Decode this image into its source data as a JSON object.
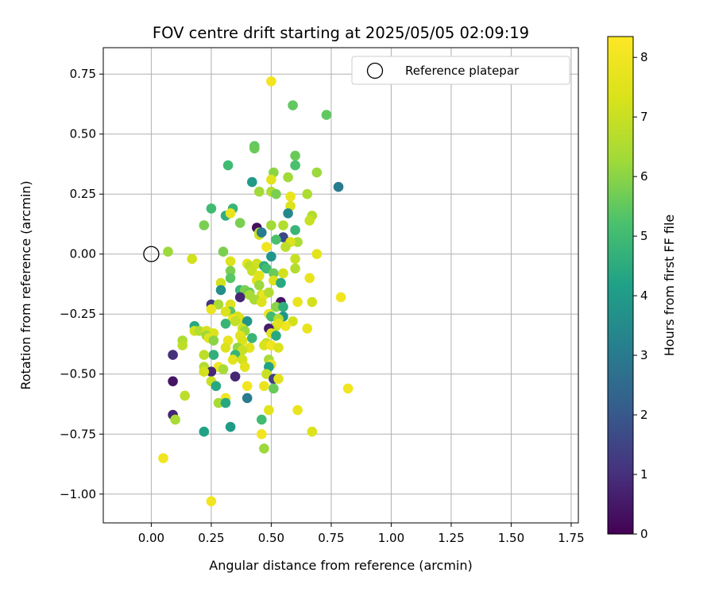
{
  "chart_data": {
    "type": "scatter",
    "title": "FOV centre drift starting at 2025/05/05 02:09:19",
    "xlabel": "Angular distance from reference (arcmin)",
    "ylabel": "Rotation from reference (arcmin)",
    "xlim": [
      -0.2,
      1.78
    ],
    "ylim": [
      -1.12,
      0.86
    ],
    "xticks": [
      0.0,
      0.25,
      0.5,
      0.75,
      1.0,
      1.25,
      1.5,
      1.75
    ],
    "xtick_labels": [
      "0.00",
      "0.25",
      "0.50",
      "0.75",
      "1.00",
      "1.25",
      "1.50",
      "1.75"
    ],
    "yticks": [
      0.75,
      0.5,
      0.25,
      0.0,
      -0.25,
      -0.5,
      -0.75,
      -1.0
    ],
    "ytick_labels": [
      "0.75",
      "0.50",
      "0.25",
      "0.00",
      "−0.25",
      "−0.50",
      "−0.75",
      "−1.00"
    ],
    "grid": true,
    "legend": {
      "label": "Reference platepar",
      "position": "top-right"
    },
    "reference_point": {
      "x": 0.0,
      "y": 0.0
    },
    "colorbar": {
      "label": "Hours from first FF file",
      "min": 0,
      "max": 8.35,
      "ticks": [
        0,
        1,
        2,
        3,
        4,
        5,
        6,
        7,
        8
      ],
      "tick_labels": [
        "0",
        "1",
        "2",
        "3",
        "4",
        "5",
        "6",
        "7",
        "8"
      ],
      "colormap": "viridis"
    },
    "series": [
      {
        "values": [
          [
            0.5,
            0.72,
            8.0
          ],
          [
            0.59,
            0.62,
            5.5
          ],
          [
            0.73,
            0.58,
            5.5
          ],
          [
            0.43,
            0.45,
            5.5
          ],
          [
            0.43,
            0.44,
            5.6
          ],
          [
            0.6,
            0.41,
            5.6
          ],
          [
            0.32,
            0.37,
            5.0
          ],
          [
            0.6,
            0.37,
            5.2
          ],
          [
            0.69,
            0.34,
            6.2
          ],
          [
            0.51,
            0.34,
            6.0
          ],
          [
            0.57,
            0.32,
            6.3
          ],
          [
            0.5,
            0.31,
            7.6
          ],
          [
            0.42,
            0.3,
            4.0
          ],
          [
            0.78,
            0.28,
            3.0
          ],
          [
            0.5,
            0.26,
            6.5
          ],
          [
            0.52,
            0.25,
            5.8
          ],
          [
            0.45,
            0.26,
            6.3
          ],
          [
            0.65,
            0.25,
            6.5
          ],
          [
            0.58,
            0.24,
            7.8
          ],
          [
            0.34,
            0.19,
            4.8
          ],
          [
            0.25,
            0.19,
            5.0
          ],
          [
            0.31,
            0.16,
            4.6
          ],
          [
            0.58,
            0.2,
            7.4
          ],
          [
            0.33,
            0.17,
            7.8
          ],
          [
            0.22,
            0.12,
            5.8
          ],
          [
            0.57,
            0.17,
            3.4
          ],
          [
            0.37,
            0.13,
            5.8
          ],
          [
            0.67,
            0.16,
            6.6
          ],
          [
            0.66,
            0.14,
            7.0
          ],
          [
            0.5,
            0.12,
            6.3
          ],
          [
            0.55,
            0.12,
            6.6
          ],
          [
            0.44,
            0.11,
            0.3
          ],
          [
            0.45,
            0.09,
            6.4
          ],
          [
            0.45,
            0.08,
            7.2
          ],
          [
            0.46,
            0.09,
            3.0
          ],
          [
            0.6,
            0.1,
            4.8
          ],
          [
            0.55,
            0.07,
            1.6
          ],
          [
            0.52,
            0.06,
            5.2
          ],
          [
            0.61,
            0.05,
            6.5
          ],
          [
            0.58,
            0.05,
            7.4
          ],
          [
            0.56,
            0.03,
            6.8
          ],
          [
            0.48,
            0.03,
            8.0
          ],
          [
            0.07,
            0.01,
            6.2
          ],
          [
            0.3,
            0.01,
            5.8
          ],
          [
            0.69,
            0.0,
            7.6
          ],
          [
            0.17,
            -0.02,
            7.2
          ],
          [
            0.5,
            -0.01,
            3.8
          ],
          [
            0.6,
            -0.02,
            7.0
          ],
          [
            0.33,
            -0.03,
            7.4
          ],
          [
            0.4,
            -0.04,
            7.6
          ],
          [
            0.41,
            -0.05,
            6.8
          ],
          [
            0.44,
            -0.04,
            7.1
          ],
          [
            0.47,
            -0.05,
            4.6
          ],
          [
            0.48,
            -0.06,
            5.0
          ],
          [
            0.6,
            -0.06,
            6.6
          ],
          [
            0.33,
            -0.07,
            5.8
          ],
          [
            0.42,
            -0.07,
            7.0
          ],
          [
            0.51,
            -0.08,
            5.6
          ],
          [
            0.55,
            -0.08,
            7.2
          ],
          [
            0.45,
            -0.09,
            7.5
          ],
          [
            0.33,
            -0.1,
            5.4
          ],
          [
            0.66,
            -0.1,
            7.8
          ],
          [
            0.51,
            -0.11,
            7.4
          ],
          [
            0.44,
            -0.11,
            7.5
          ],
          [
            0.54,
            -0.12,
            4.4
          ],
          [
            0.29,
            -0.12,
            7.2
          ],
          [
            0.45,
            -0.13,
            6.2
          ],
          [
            0.37,
            -0.15,
            4.8
          ],
          [
            0.39,
            -0.15,
            5.8
          ],
          [
            0.41,
            -0.16,
            5.6
          ],
          [
            0.29,
            -0.15,
            3.6
          ],
          [
            0.41,
            -0.17,
            6.4
          ],
          [
            0.46,
            -0.17,
            7.0
          ],
          [
            0.47,
            -0.17,
            7.8
          ],
          [
            0.49,
            -0.16,
            6.6
          ],
          [
            0.37,
            -0.18,
            0.8
          ],
          [
            0.79,
            -0.18,
            8.0
          ],
          [
            0.61,
            -0.2,
            7.8
          ],
          [
            0.67,
            -0.2,
            7.2
          ],
          [
            0.54,
            -0.2,
            0.4
          ],
          [
            0.43,
            -0.19,
            6.4
          ],
          [
            0.46,
            -0.2,
            7.4
          ],
          [
            0.33,
            -0.21,
            7.4
          ],
          [
            0.25,
            -0.21,
            1.2
          ],
          [
            0.28,
            -0.21,
            6.4
          ],
          [
            0.52,
            -0.22,
            6.0
          ],
          [
            0.55,
            -0.22,
            4.6
          ],
          [
            0.25,
            -0.23,
            7.8
          ],
          [
            0.33,
            -0.24,
            5.4
          ],
          [
            0.31,
            -0.24,
            7.4
          ],
          [
            0.49,
            -0.25,
            7.8
          ],
          [
            0.5,
            -0.26,
            5.0
          ],
          [
            0.36,
            -0.26,
            7.2
          ],
          [
            0.55,
            -0.26,
            3.8
          ],
          [
            0.53,
            -0.27,
            6.6
          ],
          [
            0.34,
            -0.27,
            7.8
          ],
          [
            0.37,
            -0.27,
            7.4
          ],
          [
            0.35,
            -0.28,
            6.9
          ],
          [
            0.4,
            -0.28,
            3.8
          ],
          [
            0.59,
            -0.28,
            7.2
          ],
          [
            0.31,
            -0.29,
            4.8
          ],
          [
            0.52,
            -0.3,
            7.0
          ],
          [
            0.56,
            -0.3,
            8.0
          ],
          [
            0.53,
            -0.29,
            7.6
          ],
          [
            0.18,
            -0.3,
            4.4
          ],
          [
            0.65,
            -0.31,
            7.8
          ],
          [
            0.49,
            -0.31,
            0.6
          ],
          [
            0.38,
            -0.31,
            7.1
          ],
          [
            0.39,
            -0.32,
            6.2
          ],
          [
            0.18,
            -0.32,
            7.2
          ],
          [
            0.2,
            -0.32,
            6.6
          ],
          [
            0.23,
            -0.32,
            7.2
          ],
          [
            0.26,
            -0.33,
            7.4
          ],
          [
            0.5,
            -0.33,
            7.6
          ],
          [
            0.52,
            -0.34,
            4.4
          ],
          [
            0.37,
            -0.34,
            7.6
          ],
          [
            0.23,
            -0.34,
            6.2
          ],
          [
            0.24,
            -0.35,
            7.5
          ],
          [
            0.42,
            -0.35,
            4.8
          ],
          [
            0.13,
            -0.36,
            6.5
          ],
          [
            0.38,
            -0.36,
            7.3
          ],
          [
            0.32,
            -0.36,
            7.8
          ],
          [
            0.26,
            -0.36,
            6.0
          ],
          [
            0.48,
            -0.37,
            6.9
          ],
          [
            0.47,
            -0.38,
            7.3
          ],
          [
            0.13,
            -0.38,
            6.8
          ],
          [
            0.5,
            -0.38,
            8.0
          ],
          [
            0.36,
            -0.39,
            6.1
          ],
          [
            0.41,
            -0.39,
            7.6
          ],
          [
            0.53,
            -0.39,
            7.4
          ],
          [
            0.31,
            -0.39,
            7.4
          ],
          [
            0.38,
            -0.4,
            7.0
          ],
          [
            0.09,
            -0.42,
            1.0
          ],
          [
            0.35,
            -0.42,
            4.8
          ],
          [
            0.26,
            -0.42,
            4.6
          ],
          [
            0.22,
            -0.42,
            6.8
          ],
          [
            0.34,
            -0.44,
            7.6
          ],
          [
            0.38,
            -0.44,
            7.2
          ],
          [
            0.49,
            -0.44,
            6.4
          ],
          [
            0.5,
            -0.46,
            7.9
          ],
          [
            0.49,
            -0.47,
            4.2
          ],
          [
            0.22,
            -0.47,
            6.6
          ],
          [
            0.28,
            -0.47,
            8.0
          ],
          [
            0.39,
            -0.47,
            7.6
          ],
          [
            0.3,
            -0.48,
            6.4
          ],
          [
            0.25,
            -0.49,
            0.8
          ],
          [
            0.22,
            -0.49,
            7.2
          ],
          [
            0.35,
            -0.51,
            0.8
          ],
          [
            0.48,
            -0.5,
            7.0
          ],
          [
            0.51,
            -0.52,
            1.4
          ],
          [
            0.53,
            -0.52,
            7.6
          ],
          [
            0.09,
            -0.53,
            0.4
          ],
          [
            0.25,
            -0.53,
            7.0
          ],
          [
            0.27,
            -0.55,
            4.4
          ],
          [
            0.4,
            -0.55,
            8.0
          ],
          [
            0.47,
            -0.55,
            7.8
          ],
          [
            0.51,
            -0.56,
            5.6
          ],
          [
            0.82,
            -0.56,
            8.0
          ],
          [
            0.14,
            -0.59,
            6.8
          ],
          [
            0.31,
            -0.6,
            8.0
          ],
          [
            0.4,
            -0.6,
            3.0
          ],
          [
            0.28,
            -0.62,
            6.4
          ],
          [
            0.31,
            -0.62,
            4.4
          ],
          [
            0.49,
            -0.65,
            7.6
          ],
          [
            0.61,
            -0.65,
            7.8
          ],
          [
            0.09,
            -0.67,
            0.8
          ],
          [
            0.1,
            -0.69,
            6.4
          ],
          [
            0.46,
            -0.69,
            5.0
          ],
          [
            0.33,
            -0.72,
            4.0
          ],
          [
            0.22,
            -0.74,
            4.2
          ],
          [
            0.67,
            -0.74,
            7.4
          ],
          [
            0.46,
            -0.75,
            8.0
          ],
          [
            0.47,
            -0.81,
            6.2
          ],
          [
            0.05,
            -0.85,
            8.0
          ],
          [
            0.25,
            -1.03,
            8.0
          ]
        ]
      }
    ]
  }
}
